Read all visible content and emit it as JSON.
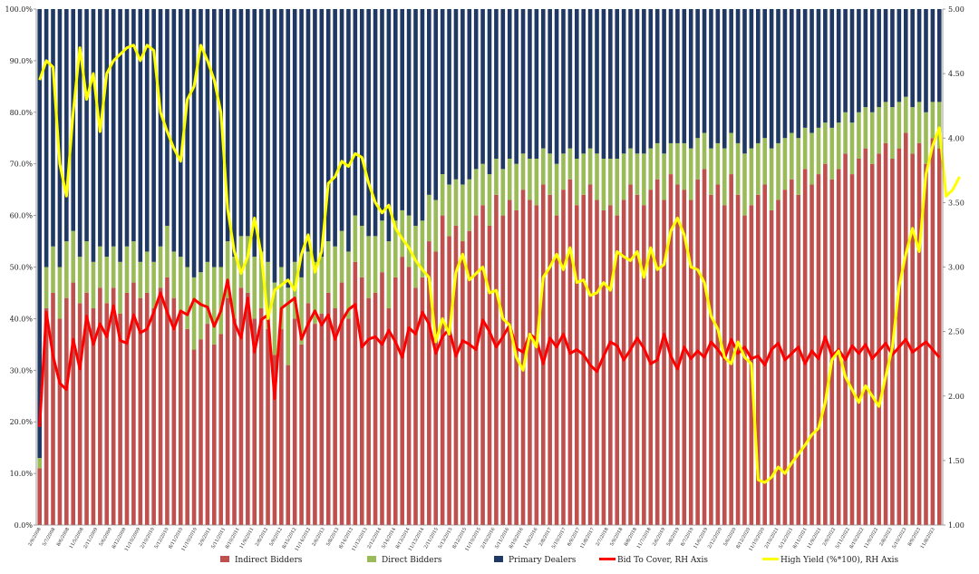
{
  "chart_data": {
    "type": "bar",
    "stacked": true,
    "title": "",
    "xlabel": "",
    "ylabel": "",
    "left_axis": {
      "ylim": [
        0,
        100
      ],
      "ticks": [
        "0.0%",
        "10.0%",
        "20.0%",
        "30.0%",
        "40.0%",
        "50.0%",
        "60.0%",
        "70.0%",
        "80.0%",
        "90.0%",
        "100.0%"
      ]
    },
    "right_axis": {
      "ylim": [
        1.0,
        5.0
      ],
      "ticks": [
        "1.00",
        "1.50",
        "2.00",
        "2.50",
        "3.00",
        "3.50",
        "4.00",
        "4.50",
        "5.00"
      ]
    },
    "x_tick_labels": [
      "2/9/2008",
      "5/7/2008",
      "8/6/2008",
      "11/5/2008",
      "2/11/2009",
      "5/6/2009",
      "8/12/2009",
      "11/10/2009",
      "2/10/2010",
      "5/12/2010",
      "8/11/2010",
      "11/10/2010",
      "2/9/2011",
      "5/11/2011",
      "8/10/2011",
      "11/9/2011",
      "2/8/2012",
      "5/9/2012",
      "8/15/2012",
      "11/14/2012",
      "2/6/2013",
      "5/8/2013",
      "8/14/2013",
      "11/13/2013",
      "2/12/2014",
      "5/14/2014",
      "8/13/2014",
      "11/13/2014",
      "2/11/2015",
      "5/13/2015",
      "8/12/2015",
      "11/10/2015",
      "2/10/2016",
      "5/11/2016",
      "8/10/2016",
      "11/9/2016",
      "2/8/2017",
      "5/10/2017",
      "8/9/2017",
      "11/8/2017",
      "2/7/2018",
      "5/9/2018",
      "8/8/2018",
      "11/7/2018",
      "2/6/2019",
      "5/8/2019",
      "8/7/2019",
      "11/6/2019",
      "2/12/2020",
      "5/6/2020",
      "8/12/2020",
      "11/10/2020",
      "2/10/2021",
      "5/12/2021",
      "8/11/2021",
      "11/9/2021",
      "2/9/2022",
      "5/11/2022",
      "8/10/2022",
      "11/9/2022",
      "2/8/2023",
      "5/10/2023",
      "8/9/2023",
      "11/8/2023"
    ],
    "indirect": [
      11,
      42,
      45,
      40,
      44,
      47,
      43,
      45,
      42,
      46,
      43,
      46,
      41,
      45,
      47,
      44,
      45,
      42,
      46,
      48,
      44,
      41,
      38,
      34,
      36,
      39,
      35,
      37,
      44,
      40,
      46,
      45,
      40,
      42,
      38,
      33,
      38,
      31,
      40,
      35,
      43,
      39,
      41,
      45,
      42,
      47,
      40,
      51,
      48,
      44,
      45,
      49,
      42,
      48,
      52,
      50,
      46,
      48,
      55,
      53,
      60,
      56,
      58,
      55,
      57,
      60,
      62,
      58,
      64,
      60,
      63,
      61,
      65,
      63,
      62,
      66,
      64,
      60,
      65,
      67,
      62,
      64,
      66,
      63,
      61,
      62,
      60,
      63,
      66,
      64,
      62,
      65,
      67,
      63,
      68,
      66,
      65,
      63,
      67,
      69,
      64,
      66,
      62,
      68,
      64,
      60,
      62,
      64,
      66,
      61,
      63,
      65,
      67,
      64,
      69,
      66,
      68,
      70,
      67,
      69,
      72,
      68,
      71,
      73,
      70,
      72,
      74,
      71,
      73,
      76,
      72,
      74,
      70,
      75,
      73
    ],
    "direct": [
      2,
      8,
      9,
      10,
      11,
      10,
      9,
      10,
      9,
      8,
      9,
      8,
      10,
      9,
      8,
      7,
      8,
      9,
      8,
      10,
      9,
      11,
      12,
      14,
      13,
      12,
      15,
      13,
      11,
      12,
      10,
      11,
      12,
      11,
      13,
      14,
      12,
      15,
      11,
      13,
      10,
      12,
      11,
      10,
      12,
      10,
      13,
      9,
      10,
      12,
      11,
      10,
      13,
      11,
      9,
      10,
      12,
      11,
      9,
      10,
      8,
      10,
      9,
      11,
      10,
      9,
      8,
      10,
      7,
      9,
      8,
      9,
      7,
      8,
      9,
      7,
      8,
      10,
      7,
      6,
      9,
      8,
      7,
      9,
      10,
      9,
      11,
      9,
      7,
      8,
      10,
      8,
      7,
      9,
      6,
      8,
      9,
      10,
      8,
      7,
      9,
      8,
      11,
      8,
      10,
      12,
      11,
      10,
      9,
      12,
      11,
      10,
      9,
      11,
      8,
      10,
      9,
      8,
      10,
      9,
      8,
      10,
      9,
      8,
      10,
      9,
      8,
      10,
      9,
      7,
      9,
      8,
      10,
      7,
      9
    ],
    "bid_to_cover": [
      1.76,
      2.65,
      2.31,
      2.1,
      2.05,
      2.44,
      2.21,
      2.62,
      2.4,
      2.56,
      2.46,
      2.7,
      2.43,
      2.41,
      2.63,
      2.49,
      2.52,
      2.65,
      2.8,
      2.65,
      2.52,
      2.66,
      2.63,
      2.75,
      2.71,
      2.69,
      2.54,
      2.66,
      2.9,
      2.57,
      2.45,
      2.76,
      2.34,
      2.59,
      2.63,
      1.98,
      2.68,
      2.72,
      2.76,
      2.44,
      2.56,
      2.66,
      2.55,
      2.63,
      2.44,
      2.58,
      2.67,
      2.71,
      2.38,
      2.44,
      2.46,
      2.4,
      2.51,
      2.42,
      2.3,
      2.53,
      2.48,
      2.65,
      2.56,
      2.33,
      2.46,
      2.52,
      2.31,
      2.43,
      2.4,
      2.36,
      2.59,
      2.5,
      2.38,
      2.46,
      2.55,
      2.37,
      2.34,
      2.48,
      2.44,
      2.25,
      2.45,
      2.38,
      2.48,
      2.33,
      2.36,
      2.32,
      2.24,
      2.19,
      2.31,
      2.42,
      2.39,
      2.28,
      2.36,
      2.45,
      2.37,
      2.25,
      2.28,
      2.48,
      2.31,
      2.21,
      2.38,
      2.29,
      2.35,
      2.3,
      2.42,
      2.36,
      2.29,
      2.44,
      2.33,
      2.38,
      2.29,
      2.31,
      2.24,
      2.36,
      2.41,
      2.28,
      2.33,
      2.38,
      2.25,
      2.35,
      2.29,
      2.46,
      2.31,
      2.36,
      2.28,
      2.39,
      2.33,
      2.4,
      2.29,
      2.35,
      2.41,
      2.32,
      2.38,
      2.44,
      2.34,
      2.38,
      2.42,
      2.36,
      2.3
    ],
    "high_yield_x100": [
      4.45,
      4.6,
      4.55,
      3.8,
      3.55,
      4.2,
      4.7,
      4.3,
      4.5,
      4.05,
      4.5,
      4.6,
      4.65,
      4.7,
      4.72,
      4.6,
      4.72,
      4.68,
      4.2,
      4.05,
      3.92,
      3.82,
      4.3,
      4.4,
      4.72,
      4.6,
      4.45,
      4.2,
      3.45,
      3.12,
      2.95,
      3.08,
      3.38,
      3.1,
      2.6,
      2.82,
      2.86,
      2.9,
      2.82,
      3.1,
      3.25,
      2.96,
      3.12,
      3.65,
      3.7,
      3.82,
      3.78,
      3.88,
      3.85,
      3.65,
      3.5,
      3.42,
      3.48,
      3.3,
      3.22,
      3.15,
      3.05,
      2.98,
      2.92,
      2.42,
      2.6,
      2.48,
      2.96,
      3.1,
      2.9,
      2.95,
      3.0,
      2.8,
      2.82,
      2.6,
      2.55,
      2.3,
      2.2,
      2.48,
      2.38,
      2.92,
      3.0,
      3.1,
      2.98,
      3.15,
      2.88,
      2.9,
      2.78,
      2.8,
      2.88,
      2.82,
      3.12,
      3.08,
      3.05,
      3.12,
      2.92,
      3.15,
      2.98,
      3.02,
      3.28,
      3.38,
      3.25,
      3.0,
      2.98,
      2.88,
      2.62,
      2.52,
      2.3,
      2.25,
      2.42,
      2.3,
      2.25,
      1.35,
      1.33,
      1.37,
      1.45,
      1.4,
      1.48,
      1.55,
      1.62,
      1.7,
      1.75,
      1.95,
      2.28,
      2.35,
      2.15,
      2.05,
      1.95,
      2.08,
      2.0,
      1.92,
      2.15,
      2.38,
      2.85,
      3.1,
      3.3,
      3.12,
      3.72,
      3.94,
      4.08,
      3.55,
      3.6,
      3.7
    ]
  },
  "legend": [
    {
      "label": "Indirect Bidders",
      "color": "#C0504D",
      "kind": "box"
    },
    {
      "label": "Direct Bidders",
      "color": "#9BBB59",
      "kind": "box"
    },
    {
      "label": "Primary Dealers",
      "color": "#1F3864",
      "kind": "box"
    },
    {
      "label": "Bid To Cover, RH Axis",
      "color": "#FF0000",
      "kind": "line"
    },
    {
      "label": "High Yield (%*100), RH Axis",
      "color": "#FFFF00",
      "kind": "line"
    }
  ]
}
